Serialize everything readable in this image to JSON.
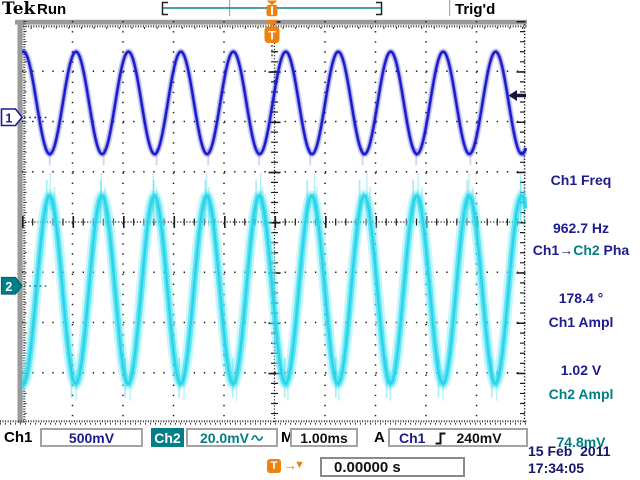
{
  "header": {
    "logo": "Tek",
    "acq_status": "Run",
    "trig_status": "Trig'd"
  },
  "trigger": {
    "flag_label": "T",
    "delay_label": "T",
    "delay_value": "0.00000 s"
  },
  "channel_markers": {
    "ch1": "1",
    "ch2": "2"
  },
  "measurements": {
    "freq": {
      "label": "Ch1 Freq",
      "value": "962.7 Hz"
    },
    "phase": {
      "label_ch1": "Ch1→",
      "label_ch2": "Ch2",
      "label_rest": " Pha",
      "value": "178.4 °"
    },
    "ch1_ampl": {
      "label": "Ch1 Ampl",
      "value": "1.02 V"
    },
    "ch2_ampl": {
      "label": "Ch2 Ampl",
      "value": "74.8mV"
    }
  },
  "readouts": {
    "ch1_label": "Ch1",
    "ch1_scale": "500mV",
    "ch2_label": "Ch2",
    "ch2_scale": "20.0mV",
    "ch2_coupling_icon": "sine-wave",
    "timebase_label": "M",
    "timebase": "1.00ms",
    "acquire_label": "A",
    "trig_source": "Ch1",
    "trig_slope_icon": "rising-edge",
    "trig_level": "240mV"
  },
  "datetime": {
    "date": "15 Feb  2011",
    "time": "17:34:05"
  },
  "colors": {
    "ch1": "#2323d0",
    "ch1_core": "#1a1ac8",
    "ch2": "#25d6ea",
    "ch2_halo": "#8deffa",
    "navy_text": "#1c1c8f",
    "teal": "#007f87",
    "orange": "#ef820f",
    "grid": "#1a1a1a",
    "bezel": "#9a9a9a",
    "black_text": "#111111"
  },
  "waveforms": {
    "timebase_ms_per_div": 1.0,
    "divisions": {
      "horizontal": 10,
      "vertical": 8
    },
    "ch1": {
      "freq_hz": 962.7,
      "volts_per_div_V": 0.5,
      "ampl_Vpp": 1.02,
      "center_div": 1.63,
      "first_peak_div": 0.03
    },
    "ch2": {
      "volts_per_div_V": 0.02,
      "ampl_Vpp": 0.0748,
      "phase_deg": 178.4,
      "center_div": 5.35
    }
  }
}
